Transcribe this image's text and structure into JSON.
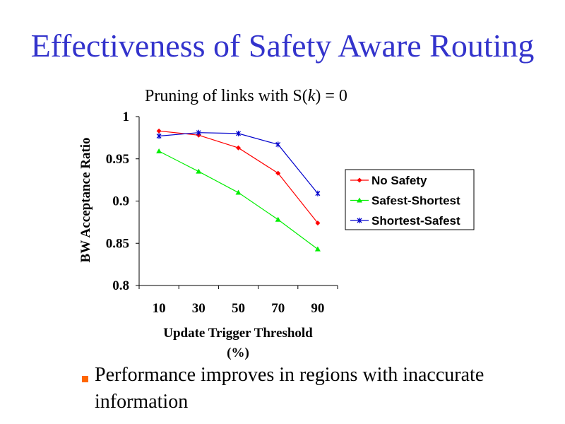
{
  "slide": {
    "title": "Effectiveness of Safety Aware Routing",
    "bullets": [
      "Performance improves in regions with inaccurate information"
    ]
  },
  "colors": {
    "title": "#3333cc",
    "bullet_marker": "#ff6600"
  },
  "chart_data": {
    "type": "line",
    "title_prefix": "Pruning of links with S(",
    "title_var": "k",
    "title_suffix": ") = 0",
    "xlabel_line1": "Update Trigger Threshold",
    "xlabel_line2": "(%)",
    "ylabel": "BW Acceptance Ratio",
    "categories": [
      "10",
      "30",
      "50",
      "70",
      "90"
    ],
    "ylim": [
      0.8,
      1
    ],
    "yticks": [
      "0.8",
      "0.85",
      "0.9",
      "0.95",
      "1"
    ],
    "grid": false,
    "legend_position": "right",
    "series": [
      {
        "name": "No Safety",
        "color": "#ff0000",
        "marker": "diamond",
        "values": [
          0.983,
          0.978,
          0.963,
          0.933,
          0.874
        ]
      },
      {
        "name": "Safest-Shortest",
        "color": "#00ee00",
        "marker": "triangle",
        "values": [
          0.959,
          0.935,
          0.91,
          0.878,
          0.843
        ]
      },
      {
        "name": "Shortest-Safest",
        "color": "#0000cc",
        "marker": "star",
        "values": [
          0.977,
          0.981,
          0.98,
          0.967,
          0.909
        ]
      }
    ]
  }
}
